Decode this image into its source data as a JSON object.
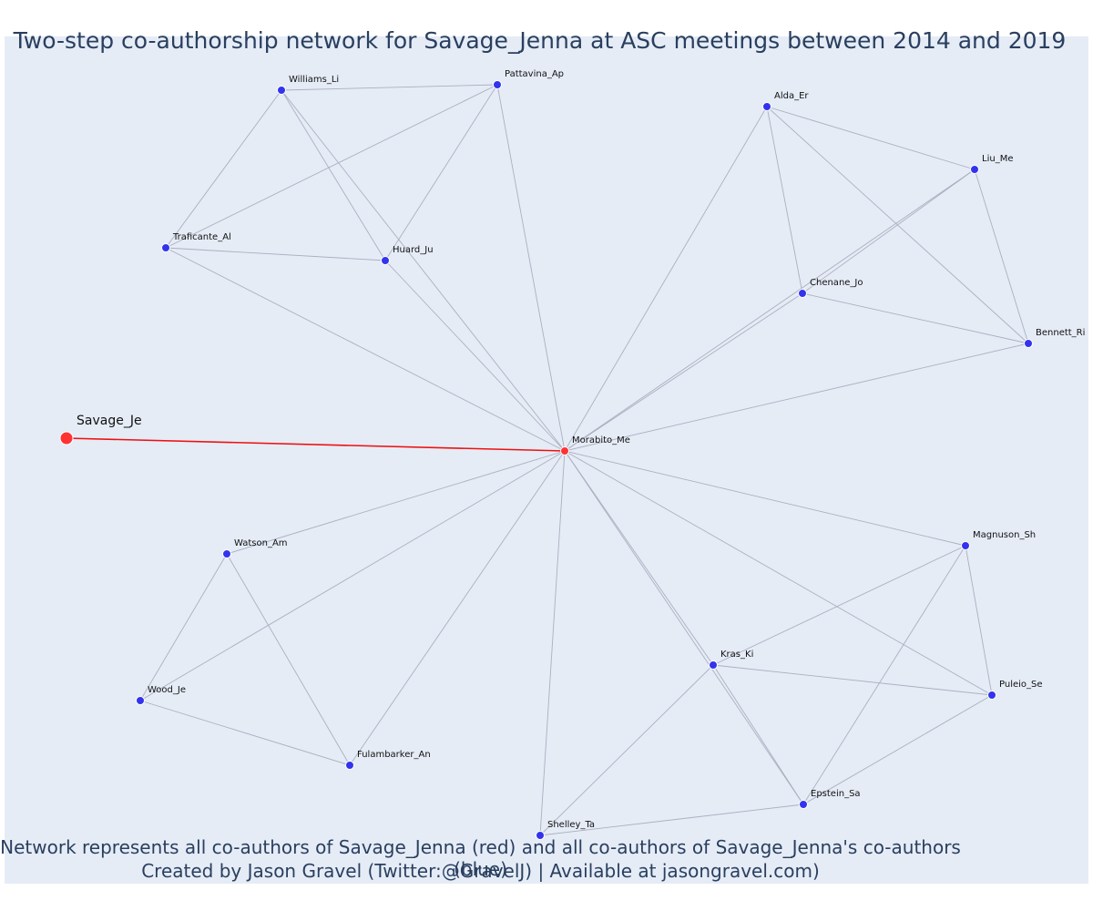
{
  "title": "Two-step co-authorship network for Savage_Jenna at ASC meetings between 2014 and 2019",
  "footer": {
    "line1": "Network represents all co-authors of Savage_Jenna (red) and all co-authors of Savage_Jenna's co-authors (blue)",
    "line2": "Created by Jason Gravel (Twitter:@GravelJ) | Available at jasongravel.com)"
  },
  "colors": {
    "background": "#e5ecf6",
    "edge": "#aab0c0",
    "focus_edge": "#ee1111",
    "focus_node": "#ff3333",
    "node": "#3333ee",
    "text": "#2a3f5f"
  },
  "network": {
    "focus": "Savage_Je",
    "nodes": [
      {
        "id": "Savage_Je",
        "group": "focus"
      },
      {
        "id": "Morabito_Me",
        "group": "coauthor"
      },
      {
        "id": "Williams_Li",
        "group": "second"
      },
      {
        "id": "Pattavina_Ap",
        "group": "second"
      },
      {
        "id": "Traficante_Al",
        "group": "second"
      },
      {
        "id": "Huard_Ju",
        "group": "second"
      },
      {
        "id": "Alda_Er",
        "group": "second"
      },
      {
        "id": "Liu_Me",
        "group": "second"
      },
      {
        "id": "Chenane_Jo",
        "group": "second"
      },
      {
        "id": "Bennett_Ri",
        "group": "second"
      },
      {
        "id": "Watson_Am",
        "group": "second"
      },
      {
        "id": "Wood_Je",
        "group": "second"
      },
      {
        "id": "Fulambarker_An",
        "group": "second"
      },
      {
        "id": "Magnuson_Sh",
        "group": "second"
      },
      {
        "id": "Kras_Ki",
        "group": "second"
      },
      {
        "id": "Puleio_Se",
        "group": "second"
      },
      {
        "id": "Epstein_Sa",
        "group": "second"
      },
      {
        "id": "Shelley_Ta",
        "group": "second"
      }
    ],
    "edges": [
      [
        "Savage_Je",
        "Morabito_Me"
      ],
      [
        "Morabito_Me",
        "Williams_Li"
      ],
      [
        "Morabito_Me",
        "Pattavina_Ap"
      ],
      [
        "Morabito_Me",
        "Traficante_Al"
      ],
      [
        "Morabito_Me",
        "Huard_Ju"
      ],
      [
        "Morabito_Me",
        "Alda_Er"
      ],
      [
        "Morabito_Me",
        "Liu_Me"
      ],
      [
        "Morabito_Me",
        "Chenane_Jo"
      ],
      [
        "Morabito_Me",
        "Bennett_Ri"
      ],
      [
        "Morabito_Me",
        "Watson_Am"
      ],
      [
        "Morabito_Me",
        "Wood_Je"
      ],
      [
        "Morabito_Me",
        "Fulambarker_An"
      ],
      [
        "Morabito_Me",
        "Magnuson_Sh"
      ],
      [
        "Morabito_Me",
        "Kras_Ki"
      ],
      [
        "Morabito_Me",
        "Puleio_Se"
      ],
      [
        "Morabito_Me",
        "Epstein_Sa"
      ],
      [
        "Morabito_Me",
        "Shelley_Ta"
      ],
      [
        "Williams_Li",
        "Pattavina_Ap"
      ],
      [
        "Williams_Li",
        "Traficante_Al"
      ],
      [
        "Williams_Li",
        "Huard_Ju"
      ],
      [
        "Pattavina_Ap",
        "Traficante_Al"
      ],
      [
        "Pattavina_Ap",
        "Huard_Ju"
      ],
      [
        "Traficante_Al",
        "Huard_Ju"
      ],
      [
        "Alda_Er",
        "Liu_Me"
      ],
      [
        "Alda_Er",
        "Chenane_Jo"
      ],
      [
        "Alda_Er",
        "Bennett_Ri"
      ],
      [
        "Liu_Me",
        "Chenane_Jo"
      ],
      [
        "Liu_Me",
        "Bennett_Ri"
      ],
      [
        "Chenane_Jo",
        "Bennett_Ri"
      ],
      [
        "Watson_Am",
        "Wood_Je"
      ],
      [
        "Watson_Am",
        "Fulambarker_An"
      ],
      [
        "Wood_Je",
        "Fulambarker_An"
      ],
      [
        "Magnuson_Sh",
        "Kras_Ki"
      ],
      [
        "Magnuson_Sh",
        "Puleio_Se"
      ],
      [
        "Magnuson_Sh",
        "Epstein_Sa"
      ],
      [
        "Kras_Ki",
        "Puleio_Se"
      ],
      [
        "Kras_Ki",
        "Epstein_Sa"
      ],
      [
        "Kras_Ki",
        "Shelley_Ta"
      ],
      [
        "Puleio_Se",
        "Epstein_Sa"
      ],
      [
        "Epstein_Sa",
        "Shelley_Ta"
      ]
    ]
  }
}
